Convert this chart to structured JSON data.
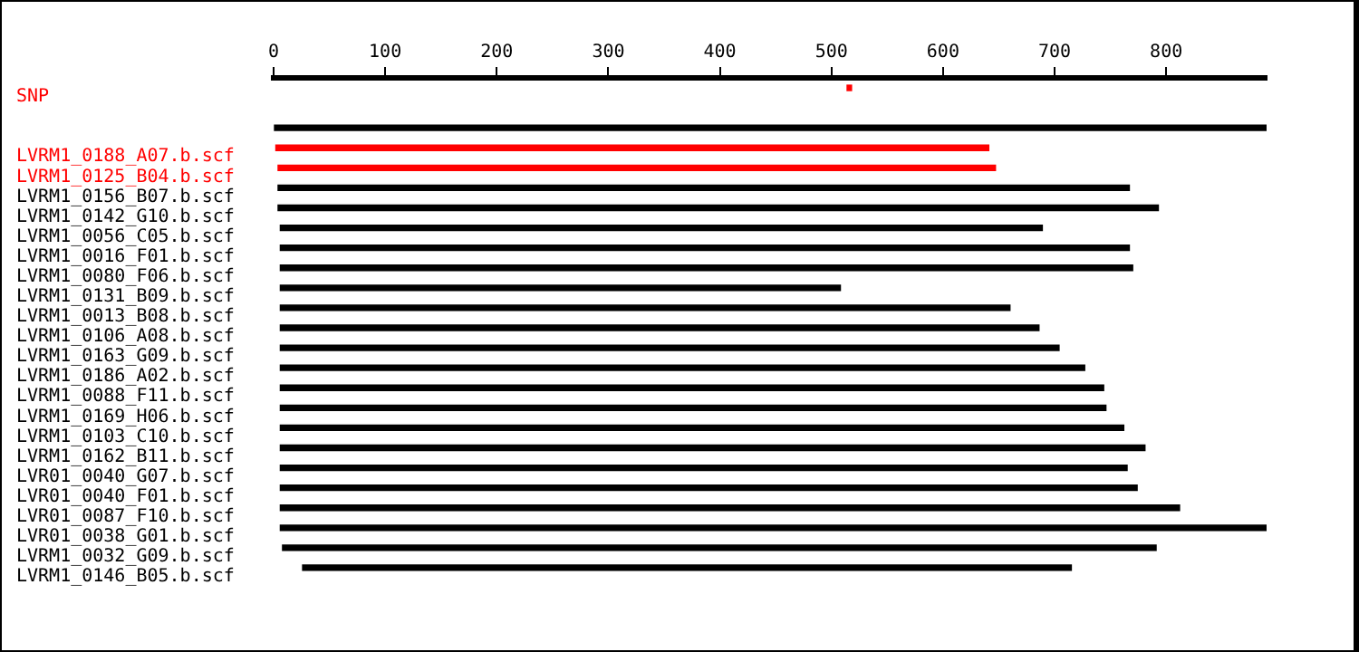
{
  "chart_data": {
    "type": "bar",
    "orientation": "horizontal",
    "categories": [
      "SNP",
      null,
      null,
      "LVRM1_0188_A07.b.scf",
      "LVRM1_0125_B04.b.scf",
      "LVRM1_0156_B07.b.scf",
      "LVRM1_0142_G10.b.scf",
      "LVRM1_0056_C05.b.scf",
      "LVRM1_0016_F01.b.scf",
      "LVRM1_0080_F06.b.scf",
      "LVRM1_0131_B09.b.scf",
      "LVRM1_0013_B08.b.scf",
      "LVRM1_0106_A08.b.scf",
      "LVRM1_0163_G09.b.scf",
      "LVRM1_0186_A02.b.scf",
      "LVRM1_0088_F11.b.scf",
      "LVRM1_0169_H06.b.scf",
      "LVRM1_0103_C10.b.scf",
      "LVRM1_0162_B11.b.scf",
      "LVR01_0040_G07.b.scf",
      "LVR01_0040_F01.b.scf",
      "LVR01_0087_F10.b.scf",
      "LVR01_0038_G01.b.scf",
      "LVRM1_0032_G09.b.scf",
      "LVRM1_0146_B05.b.scf"
    ],
    "base": [
      514,
      null,
      0,
      2,
      4,
      4,
      4,
      6,
      6,
      6,
      6,
      6,
      6,
      6,
      6,
      6,
      6,
      6,
      6,
      6,
      6,
      6,
      6,
      8,
      26
    ],
    "values": [
      4,
      null,
      890,
      639,
      643,
      763,
      789,
      683,
      761,
      764,
      502,
      654,
      680,
      698,
      721,
      738,
      740,
      756,
      775,
      759,
      768,
      806,
      884,
      783,
      689
    ],
    "colors": [
      "#ff0000",
      "#000000",
      "#000000",
      "#ff0000",
      "#ff0000",
      "#000000",
      "#000000",
      "#000000",
      "#000000",
      "#000000",
      "#000000",
      "#000000",
      "#000000",
      "#000000",
      "#000000",
      "#000000",
      "#000000",
      "#000000",
      "#000000",
      "#000000",
      "#000000",
      "#000000",
      "#000000",
      "#000000",
      "#000000"
    ],
    "xlim": [
      0,
      890
    ],
    "xticks": [
      0,
      100,
      200,
      300,
      400,
      500,
      600,
      700,
      800
    ],
    "grid": false,
    "legend": false
  }
}
